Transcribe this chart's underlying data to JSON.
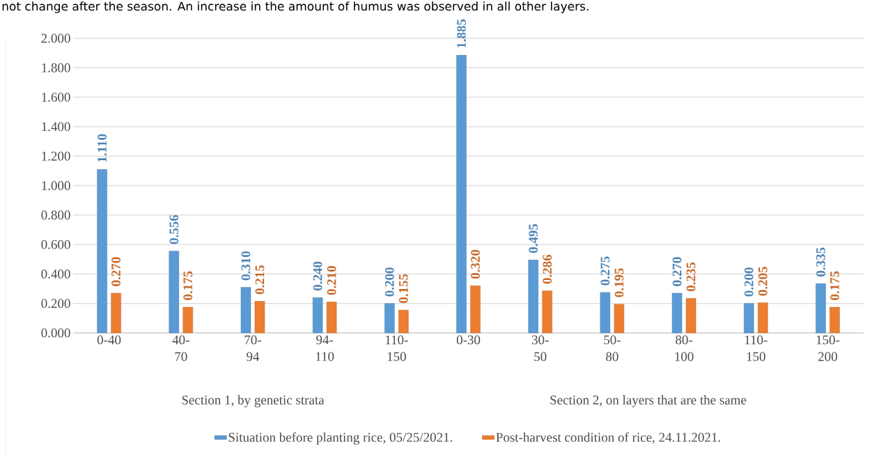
{
  "chart_data": {
    "type": "bar",
    "annotations": [
      "not change after the season. An increase in the amount of humus was observed in all other layers.",
      "Section 1, by genetic strata",
      "Section 2, on layers that are the same"
    ],
    "categories": [
      "0-40",
      "40-70",
      "70-94",
      "94-110",
      "110-150",
      "0-30",
      "30-50",
      "50-80",
      "80-100",
      "110-150",
      "150-200"
    ],
    "series": [
      {
        "name": "Situation before planting rice, 05/25/2021.",
        "color": "#5b9bd5",
        "values": [
          1.11,
          0.556,
          0.31,
          0.24,
          0.2,
          1.885,
          0.495,
          0.275,
          0.27,
          0.2,
          0.335
        ],
        "value_labels": [
          "1.110",
          "0.556",
          "0.310",
          "0.240",
          "0.200",
          "1.885",
          "0.495",
          "0.275",
          "0.270",
          "0.200",
          "0.335"
        ]
      },
      {
        "name": "Post-harvest condition of rice, 24.11.2021.",
        "color": "#ed7d31",
        "values": [
          0.27,
          0.175,
          0.215,
          0.21,
          0.155,
          0.32,
          0.286,
          0.195,
          0.235,
          0.205,
          0.175
        ],
        "value_labels": [
          "0.270",
          "0.175",
          "0.215",
          "0.210",
          "0.155",
          "0.320",
          "0.286",
          "0.195",
          "0.235",
          "0.205",
          "0.175"
        ]
      }
    ],
    "ylim": [
      0,
      2
    ],
    "yticks": [
      {
        "value": 0,
        "label": "0.000"
      },
      {
        "value": 0.2,
        "label": "0.200"
      },
      {
        "value": 0.4,
        "label": "0.400"
      },
      {
        "value": 0.6,
        "label": "0.600"
      },
      {
        "value": 0.8,
        "label": "0.800"
      },
      {
        "value": 1.0,
        "label": "1.000"
      },
      {
        "value": 1.2,
        "label": "1.200"
      },
      {
        "value": 1.4,
        "label": "1.400"
      },
      {
        "value": 1.6,
        "label": "1.600"
      },
      {
        "value": 1.8,
        "label": "1.800"
      },
      {
        "value": 2.0,
        "label": "2.000"
      }
    ],
    "grid": "y",
    "legend": "bottom"
  }
}
